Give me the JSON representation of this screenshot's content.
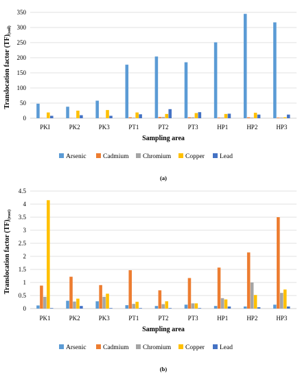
{
  "colors": {
    "Arsenic": "#5b9bd5",
    "Cadmium": "#ed7d31",
    "Chromium": "#a5a5a5",
    "Copper": "#ffc000",
    "Lead": "#4472c4",
    "grid": "#d9d9d9",
    "axis": "#bfbfbf"
  },
  "chart_data": [
    {
      "type": "bar",
      "panel_label": "(a)",
      "xlabel": "Sampling area",
      "ylabel_main": "Translocation factor (TF)",
      "ylabel_sub": "(soil)",
      "ylim": [
        0,
        350
      ],
      "yticks": [
        "0",
        "50",
        "100",
        "150",
        "200",
        "250",
        "300",
        "350"
      ],
      "ytick_values": [
        0,
        50,
        100,
        150,
        200,
        250,
        300,
        350
      ],
      "categories": [
        "PKI",
        "PK2",
        "PK3",
        "PT1",
        "PT2",
        "PT3",
        "HP1",
        "HP2",
        "HP3"
      ],
      "grid": true,
      "legend_position": "bottom",
      "series": [
        {
          "name": "Arsenic",
          "values": [
            48,
            38,
            58,
            177,
            204,
            185,
            251,
            345,
            317
          ]
        },
        {
          "name": "Cadmium",
          "values": [
            1,
            1,
            1,
            3,
            4,
            3,
            2,
            3,
            2
          ]
        },
        {
          "name": "Chromium",
          "values": [
            1,
            1,
            1,
            2,
            4,
            3,
            2,
            2,
            2
          ]
        },
        {
          "name": "Copper",
          "values": [
            19,
            25,
            27,
            19,
            14,
            17,
            14,
            18,
            3
          ]
        },
        {
          "name": "Lead",
          "values": [
            8,
            10,
            8,
            13,
            30,
            20,
            15,
            12,
            12
          ]
        }
      ]
    },
    {
      "type": "bar",
      "panel_label": "(b)",
      "xlabel": "Sampling area",
      "ylabel_main": "Translocation factor (TF)",
      "ylabel_sub": "(root)",
      "ylim": [
        0,
        4.5
      ],
      "yticks": [
        "0",
        "0.5",
        "1",
        "1.5",
        "2",
        "2.5",
        "3",
        "3.5",
        "4",
        "4.5"
      ],
      "ytick_values": [
        0,
        0.5,
        1,
        1.5,
        2,
        2.5,
        3,
        3.5,
        4,
        4.5
      ],
      "categories": [
        "PK1",
        "PK2",
        "PK3",
        "PT1",
        "PT2",
        "PT3",
        "HP1",
        "HP2",
        "HP3"
      ],
      "grid": true,
      "legend_position": "bottom",
      "series": [
        {
          "name": "Arsenic",
          "values": [
            0.12,
            0.3,
            0.28,
            0.13,
            0.1,
            0.15,
            0.1,
            0.08,
            0.15
          ]
        },
        {
          "name": "Cadmium",
          "values": [
            0.88,
            1.22,
            0.9,
            1.47,
            0.7,
            1.17,
            1.57,
            2.15,
            3.5
          ]
        },
        {
          "name": "Chromium",
          "values": [
            0.45,
            0.27,
            0.45,
            0.18,
            0.17,
            0.2,
            0.4,
            1.0,
            0.6
          ]
        },
        {
          "name": "Copper",
          "values": [
            4.15,
            0.38,
            0.57,
            0.26,
            0.28,
            0.2,
            0.35,
            0.52,
            0.73
          ]
        },
        {
          "name": "Lead",
          "values": [
            0.02,
            0.1,
            0.02,
            0.02,
            0.02,
            0.02,
            0.08,
            0.05,
            0.08
          ]
        }
      ]
    }
  ]
}
